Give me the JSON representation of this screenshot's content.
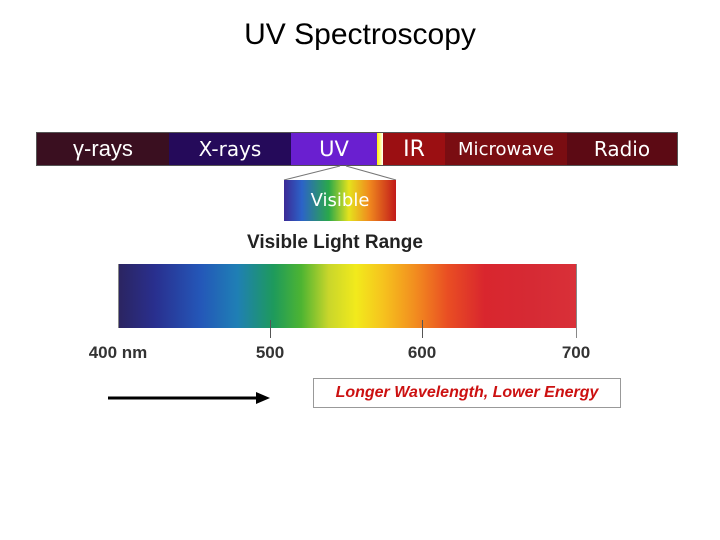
{
  "title": "UV Spectroscopy",
  "bands": {
    "gamma": "γ-rays",
    "xray": "X-rays",
    "uv": "UV",
    "ir": "IR",
    "microwave": "Microwave",
    "radio": "Radio"
  },
  "visible_label": "Visible",
  "range_title": "Visible Light Range",
  "ticks": [
    "400 nm",
    "500",
    "600",
    "700"
  ],
  "note": "Longer Wavelength, Lower Energy",
  "colors": {
    "note_text": "#cc1111",
    "band_border": "#555555"
  }
}
